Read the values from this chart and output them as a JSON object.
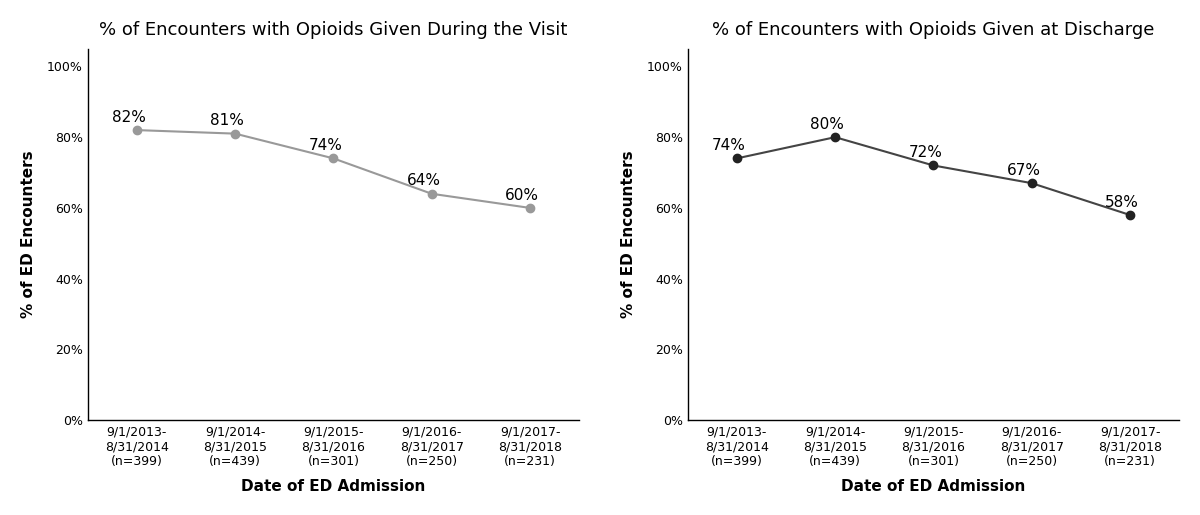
{
  "left_title": "% of Encounters with Opioids Given During the Visit",
  "right_title": "% of Encounters with Opioids Given at Discharge",
  "xlabel": "Date of ED Admission",
  "ylabel": "% of ED Encounters",
  "x_labels": [
    "9/1/2013-\n8/31/2014\n(n=399)",
    "9/1/2014-\n8/31/2015\n(n=439)",
    "9/1/2015-\n8/31/2016\n(n=301)",
    "9/1/2016-\n8/31/2017\n(n=250)",
    "9/1/2017-\n8/31/2018\n(n=231)"
  ],
  "left_values": [
    82,
    81,
    74,
    64,
    60
  ],
  "right_values": [
    74,
    80,
    72,
    67,
    58
  ],
  "left_labels": [
    "82%",
    "81%",
    "74%",
    "64%",
    "60%"
  ],
  "right_labels": [
    "74%",
    "80%",
    "72%",
    "67%",
    "58%"
  ],
  "left_marker_color": "#999999",
  "right_marker_color": "#222222",
  "line_color_left": "#999999",
  "line_color_right": "#444444",
  "bg_color": "#ffffff",
  "yticks": [
    0,
    20,
    40,
    60,
    80,
    100
  ],
  "ylim": [
    0,
    105
  ],
  "title_fontsize": 13,
  "label_fontsize": 11,
  "tick_fontsize": 9,
  "annot_fontsize": 11
}
